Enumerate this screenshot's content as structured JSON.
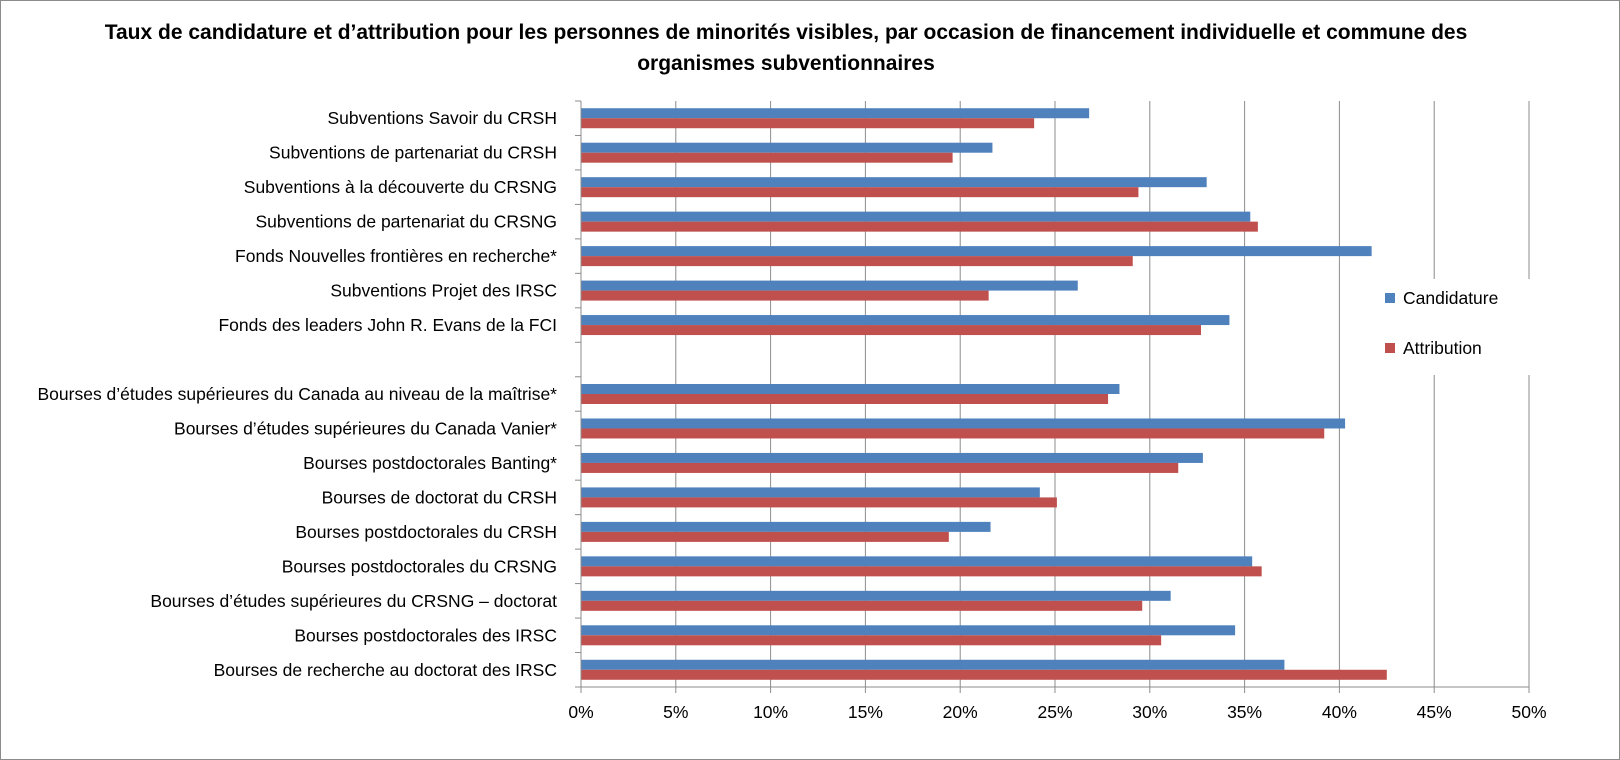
{
  "chart_data": {
    "type": "bar",
    "orientation": "horizontal",
    "title": "Taux de candidature et d’attribution pour les personnes de minorités visibles, par occasion de financement individuelle et commune des organismes subventionnaires",
    "xlabel": "",
    "ylabel": "",
    "xlim": [
      0,
      50
    ],
    "x_tick_labels": [
      "0%",
      "5%",
      "10%",
      "15%",
      "20%",
      "25%",
      "30%",
      "35%",
      "40%",
      "45%",
      "50%"
    ],
    "grid": true,
    "legend_position": "right",
    "categories": [
      "Subventions Savoir du CRSH",
      "Subventions de partenariat du CRSH",
      "Subventions à la découverte du CRSNG",
      "Subventions de partenariat du CRSNG",
      "Fonds Nouvelles frontières en recherche*",
      "Subventions Projet des IRSC",
      "Fonds des leaders John R. Evans de la FCI",
      "",
      "Bourses d’études supérieures du Canada au niveau de la maîtrise*",
      "Bourses d’études supérieures du Canada Vanier*",
      "Bourses postdoctorales Banting*",
      "Bourses de doctorat du CRSH",
      "Bourses postdoctorales du CRSH",
      "Bourses postdoctorales du CRSNG",
      "Bourses d’études supérieures du CRSNG – doctorat",
      "Bourses postdoctorales des IRSC",
      "Bourses de recherche au doctorat des IRSC"
    ],
    "series": [
      {
        "name": "Candidature",
        "color": "#4f81bd",
        "values": [
          26.8,
          21.7,
          33.0,
          35.3,
          41.7,
          26.2,
          34.2,
          null,
          28.4,
          40.3,
          32.8,
          24.2,
          21.6,
          35.4,
          31.1,
          34.5,
          37.1
        ]
      },
      {
        "name": "Attribution",
        "color": "#c0504d",
        "values": [
          23.9,
          19.6,
          29.4,
          35.7,
          29.1,
          21.5,
          32.7,
          null,
          27.8,
          39.2,
          31.5,
          25.1,
          19.4,
          35.9,
          29.6,
          30.6,
          42.5
        ]
      }
    ]
  }
}
